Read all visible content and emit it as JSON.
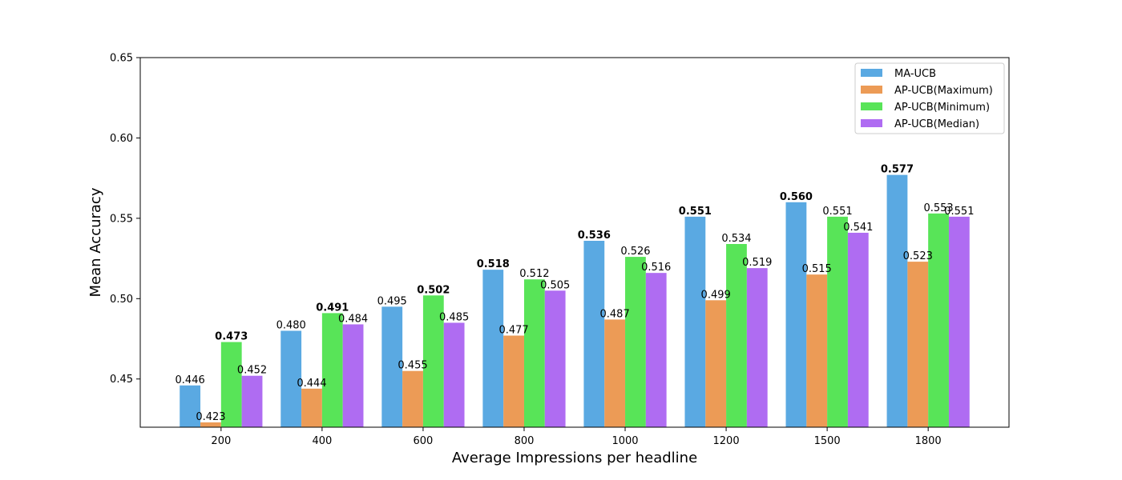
{
  "chart_data": {
    "type": "bar",
    "title": "",
    "xlabel": "Average Impressions per headline",
    "ylabel": "Mean Accuracy",
    "ylim": [
      0.42,
      0.65
    ],
    "yticks": [
      "0.45",
      "0.50",
      "0.55",
      "0.60",
      "0.65"
    ],
    "categories": [
      "200",
      "400",
      "600",
      "800",
      "1000",
      "1200",
      "1500",
      "1800"
    ],
    "legend_position": "top-right",
    "grid": false,
    "series": [
      {
        "name": "MA-UCB",
        "color": "#5aa9e2",
        "values": [
          0.446,
          0.48,
          0.495,
          0.518,
          0.536,
          0.551,
          0.56,
          0.577
        ],
        "labels": [
          "0.446",
          "0.480",
          "0.495",
          "0.518",
          "0.536",
          "0.551",
          "0.560",
          "0.577"
        ],
        "bold": [
          false,
          false,
          false,
          true,
          true,
          true,
          true,
          true
        ]
      },
      {
        "name": "AP-UCB(Maximum)",
        "color": "#ec9b56",
        "values": [
          0.423,
          0.444,
          0.455,
          0.477,
          0.487,
          0.499,
          0.515,
          0.523
        ],
        "labels": [
          "0.423",
          "0.444",
          "0.455",
          "0.477",
          "0.487",
          "0.499",
          "0.515",
          "0.523"
        ],
        "bold": [
          false,
          false,
          false,
          false,
          false,
          false,
          false,
          false
        ]
      },
      {
        "name": "AP-UCB(Minimum)",
        "color": "#58e458",
        "values": [
          0.473,
          0.491,
          0.502,
          0.512,
          0.526,
          0.534,
          0.551,
          0.553
        ],
        "labels": [
          "0.473",
          "0.491",
          "0.502",
          "0.512",
          "0.526",
          "0.534",
          "0.551",
          "0.553"
        ],
        "bold": [
          true,
          true,
          true,
          false,
          false,
          false,
          false,
          false
        ]
      },
      {
        "name": "AP-UCB(Median)",
        "color": "#af6cf2",
        "values": [
          0.452,
          0.484,
          0.485,
          0.505,
          0.516,
          0.519,
          0.541,
          0.551
        ],
        "labels": [
          "0.452",
          "0.484",
          "0.485",
          "0.505",
          "0.516",
          "0.519",
          "0.541",
          "0.551"
        ],
        "bold": [
          false,
          false,
          false,
          false,
          false,
          false,
          false,
          false
        ]
      }
    ]
  }
}
